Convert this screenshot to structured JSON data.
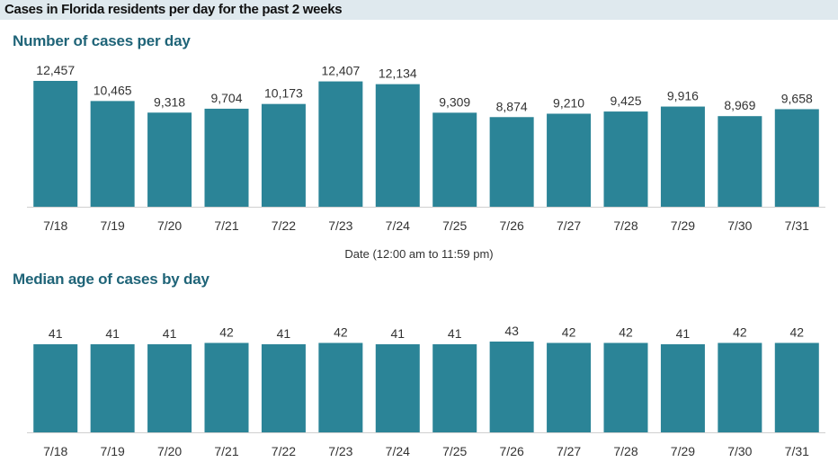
{
  "header": {
    "title": "Cases in Florida residents per day for the past 2 weeks"
  },
  "chart_data": [
    {
      "type": "bar",
      "title": "Number of cases per day",
      "xlabel": "Date (12:00 am to 11:59 pm)",
      "ylabel": "",
      "categories": [
        "7/18",
        "7/19",
        "7/20",
        "7/21",
        "7/22",
        "7/23",
        "7/24",
        "7/25",
        "7/26",
        "7/27",
        "7/28",
        "7/29",
        "7/30",
        "7/31"
      ],
      "values": [
        12457,
        10465,
        9318,
        9704,
        10173,
        12407,
        12134,
        9309,
        8874,
        9210,
        9425,
        9916,
        8969,
        9658
      ],
      "value_labels": [
        "12,457",
        "10,465",
        "9,318",
        "9,704",
        "10,173",
        "12,407",
        "12,134",
        "9,309",
        "8,874",
        "9,210",
        "9,425",
        "9,916",
        "8,969",
        "9,658"
      ],
      "ylim": [
        0,
        12457
      ],
      "color": "#2b8497",
      "grid": false
    },
    {
      "type": "bar",
      "title": "Median age of cases by day",
      "xlabel": "",
      "ylabel": "",
      "categories": [
        "7/18",
        "7/19",
        "7/20",
        "7/21",
        "7/22",
        "7/23",
        "7/24",
        "7/25",
        "7/26",
        "7/27",
        "7/28",
        "7/29",
        "7/30",
        "7/31"
      ],
      "values": [
        41,
        41,
        41,
        42,
        41,
        42,
        41,
        41,
        43,
        42,
        42,
        41,
        42,
        42
      ],
      "value_labels": [
        "41",
        "41",
        "41",
        "42",
        "41",
        "42",
        "41",
        "41",
        "43",
        "42",
        "42",
        "41",
        "42",
        "42"
      ],
      "ylim": [
        0,
        43
      ],
      "color": "#2b8497",
      "grid": false
    }
  ]
}
